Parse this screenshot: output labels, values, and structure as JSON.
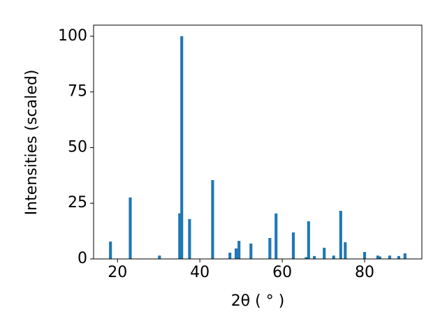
{
  "chart_data": {
    "type": "bar",
    "x_label": "2θ ( ° )",
    "y_label": "Intensities (scaled)",
    "x": [
      18.3,
      23.1,
      30.2,
      35.1,
      35.6,
      37.5,
      43.1,
      47.3,
      48.8,
      49.5,
      52.4,
      57.0,
      58.5,
      62.7,
      65.8,
      66.4,
      67.8,
      70.2,
      72.5,
      74.2,
      75.3,
      80.0,
      83.2,
      83.7,
      86.1,
      88.3,
      89.8
    ],
    "values": [
      7.8,
      27.6,
      1.5,
      20.5,
      100,
      17.9,
      35.4,
      2.8,
      4.7,
      8.1,
      6.9,
      9.4,
      20.4,
      11.9,
      0.8,
      16.9,
      1.3,
      5.0,
      1.5,
      21.6,
      7.5,
      3.1,
      1.5,
      1.1,
      1.5,
      1.3,
      2.5
    ],
    "color": "#1f77b4",
    "bar_width": 0.7,
    "xlim": [
      14.2,
      93.9
    ],
    "ylim": [
      0,
      105
    ],
    "xticks": [
      20,
      40,
      60,
      80
    ],
    "yticks": [
      0,
      25,
      50,
      75,
      100
    ]
  }
}
